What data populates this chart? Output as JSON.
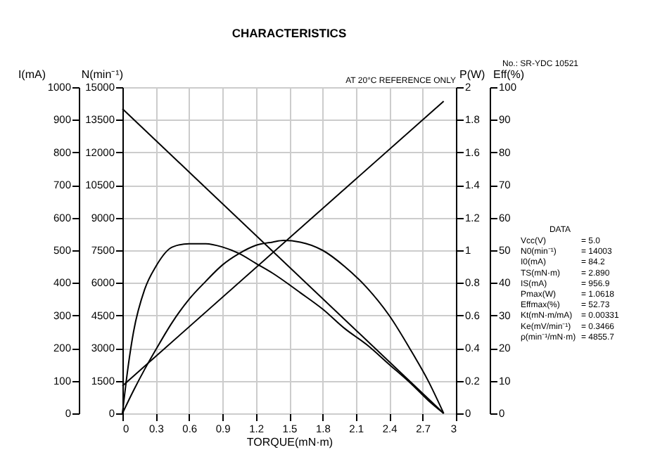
{
  "chart_data": [
    {
      "type": "line",
      "title": "CHARACTERISTICS",
      "xlabel": "TORQUE(mN·m)",
      "ylabel": "I(mA)",
      "y2label": "Eff(%)",
      "xlim": [
        0,
        3
      ],
      "xticks": [
        0,
        0.3,
        0.6,
        0.9,
        1.2,
        1.5,
        1.8,
        2.1,
        2.4,
        2.7,
        3
      ],
      "ylim": [
        0,
        1000
      ],
      "yticks": [
        0,
        100,
        200,
        300,
        400,
        500,
        600,
        700,
        800,
        900,
        1000
      ],
      "y2lim": [
        0,
        100
      ],
      "y2ticks": [
        0,
        10,
        20,
        30,
        40,
        50,
        60,
        70,
        80,
        90,
        100
      ],
      "grid": true,
      "series": [
        {
          "color": "#000000",
          "axis": "y",
          "x": [
            0,
            2.89
          ],
          "values": [
            84.2,
            956.9
          ]
        },
        {
          "color": "#000000",
          "axis": "y2",
          "x": [
            0,
            0.05,
            0.1,
            0.2,
            0.3,
            0.45,
            0.6,
            0.75,
            0.9,
            1.05,
            1.2,
            1.35,
            1.6,
            1.8,
            2.0,
            2.2,
            2.4,
            2.6,
            2.75,
            2.89
          ],
          "values": [
            0,
            14,
            25,
            38,
            45,
            51,
            52,
            52,
            51,
            49,
            46,
            43,
            37,
            32,
            26,
            21,
            15,
            9,
            4,
            0
          ]
        }
      ],
      "annotations": [
        "AT 20°C REFERENCE ONLY",
        "No.:  SR-YDC 10521",
        "DATA",
        "Vcc(V) = 5.0",
        "N0(min⁻¹) = 14003",
        "I0(mA) = 84.2",
        "TS(mN·m) = 2.890",
        "IS(mA) = 956.9",
        "Pmax(W) = 1.0618",
        "Effmax(%) = 52.73",
        "Kt(mN·m/mA) = 0.00331",
        "Ke(mV/min⁻¹) = 0.3466",
        "ρ(min⁻¹/mN·m) = 4855.7"
      ]
    },
    {
      "type": "line",
      "ylabel": "N(min⁻¹)",
      "y2label": "P(W)",
      "tick_labels": "y",
      "xlim": [
        0,
        3
      ],
      "ylim": [
        0,
        15000
      ],
      "yticks": [
        0,
        1500,
        3000,
        4500,
        6000,
        7500,
        9000,
        10500,
        12000,
        13500,
        15000
      ],
      "y2lim": [
        0,
        2
      ],
      "y2ticks": [
        0,
        0.2,
        0.4,
        0.6,
        0.8,
        1,
        1.2,
        1.4,
        1.6,
        1.8,
        2
      ],
      "series": [
        {
          "color": "#000000",
          "axis": "y",
          "x": [
            0,
            2.89
          ],
          "values": [
            14003,
            0
          ]
        },
        {
          "color": "#000000",
          "axis": "y2",
          "x": [
            0,
            0.1,
            0.2,
            0.3,
            0.45,
            0.6,
            0.75,
            0.9,
            1.05,
            1.2,
            1.35,
            1.45,
            1.6,
            1.8,
            2.0,
            2.2,
            2.4,
            2.6,
            2.75,
            2.89
          ],
          "values": [
            0,
            0.14,
            0.27,
            0.39,
            0.56,
            0.7,
            0.81,
            0.91,
            0.98,
            1.03,
            1.05,
            1.06,
            1.05,
            1.0,
            0.9,
            0.77,
            0.6,
            0.38,
            0.2,
            0
          ]
        }
      ]
    }
  ]
}
